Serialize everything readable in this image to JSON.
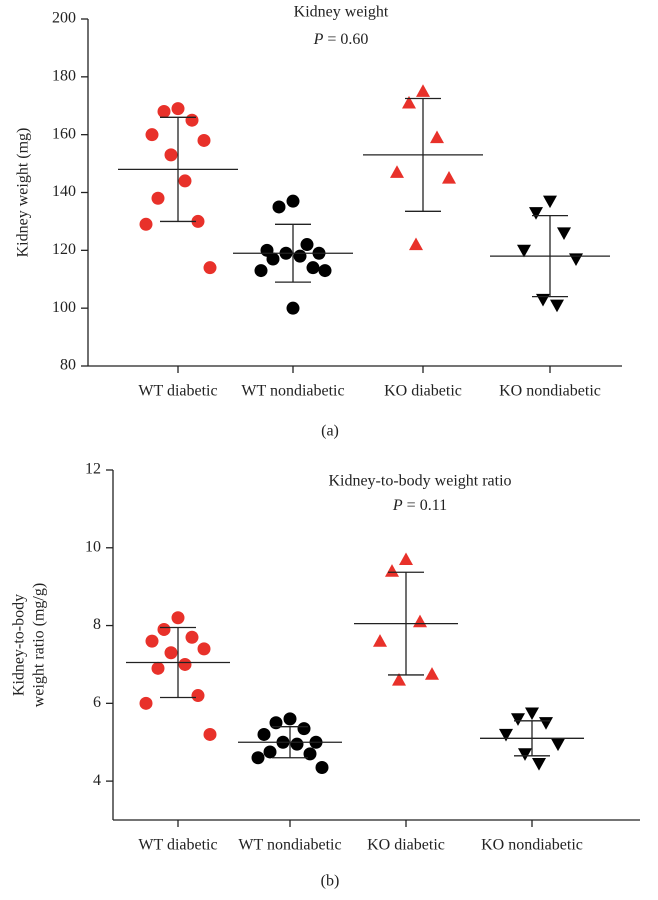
{
  "chart_data": [
    {
      "type": "dot_plot",
      "label": "(a)",
      "title": "Kidney weight",
      "annotation": [
        "P",
        " = 0.60"
      ],
      "ylabel": [
        "Kidney weight (mg)"
      ],
      "ylim": [
        80,
        200
      ],
      "yticks": [
        80,
        100,
        120,
        140,
        160,
        180,
        200
      ],
      "groups": [
        {
          "name": "WT diabetic",
          "color": "#e8312a",
          "marker": "circle",
          "values": [
            169,
            168,
            165,
            160,
            158,
            153,
            144,
            138,
            130,
            129,
            114
          ],
          "mean": 148,
          "sd": 18
        },
        {
          "name": "WT nondiabetic",
          "color": "#000000",
          "marker": "circle",
          "values": [
            137,
            135,
            122,
            120,
            119,
            119,
            118,
            117,
            114,
            113,
            113,
            100
          ],
          "mean": 119,
          "sd": 10
        },
        {
          "name": "KO diabetic",
          "color": "#e8312a",
          "marker": "triangle",
          "values": [
            175,
            171,
            159,
            147,
            145,
            122
          ],
          "mean": 153,
          "sd": 19.5
        },
        {
          "name": "KO nondiabetic",
          "color": "#000000",
          "marker": "triangle-down",
          "values": [
            137,
            133,
            126,
            120,
            117,
            103,
            101
          ],
          "mean": 118,
          "sd": 14
        }
      ]
    },
    {
      "type": "dot_plot",
      "label": "(b)",
      "title": "Kidney-to-body weight ratio",
      "annotation": [
        "P",
        " = 0.11"
      ],
      "ylabel": [
        "Kidney-to-body",
        "weight ratio (mg/g)"
      ],
      "ylim": [
        3,
        12
      ],
      "yticks": [
        4,
        6,
        8,
        10,
        12
      ],
      "groups": [
        {
          "name": "WT diabetic",
          "color": "#e8312a",
          "marker": "circle",
          "values": [
            8.2,
            7.9,
            7.7,
            7.6,
            7.4,
            7.3,
            7.0,
            6.9,
            6.2,
            6.0,
            5.2
          ],
          "mean": 7.05,
          "sd": 0.9
        },
        {
          "name": "WT nondiabetic",
          "color": "#000000",
          "marker": "circle",
          "values": [
            5.6,
            5.5,
            5.35,
            5.2,
            5.0,
            5.0,
            4.95,
            4.75,
            4.7,
            4.6,
            4.35
          ],
          "mean": 5.0,
          "sd": 0.4
        },
        {
          "name": "KO diabetic",
          "color": "#e8312a",
          "marker": "triangle",
          "values": [
            9.7,
            9.4,
            8.1,
            7.6,
            6.75,
            6.6
          ],
          "mean": 8.05,
          "sd": 1.32
        },
        {
          "name": "KO nondiabetic",
          "color": "#000000",
          "marker": "triangle-down",
          "values": [
            5.75,
            5.6,
            5.5,
            5.2,
            4.95,
            4.7,
            4.45
          ],
          "mean": 5.1,
          "sd": 0.45
        }
      ]
    }
  ]
}
